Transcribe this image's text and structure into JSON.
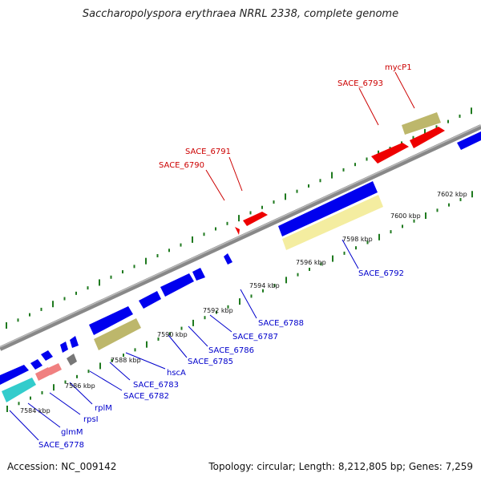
{
  "title": "Saccharopolyspora erythraea NRRL 2338, complete genome",
  "footer": {
    "accession": "Accession: NC_009142",
    "summary": "Topology: circular; Length: 8,212,805 bp; Genes: 7,259"
  },
  "colors": {
    "forward_gene": "#ee0000",
    "reverse_gene": "#0000ee",
    "backbone": "#888888",
    "ticks": "#1f7a1f",
    "label_fwd": "#cc0000",
    "label_rev": "#0000cc",
    "khaki": "#bdb76b",
    "pale_yellow": "#f4eda0",
    "cyan": "#33cccc",
    "pink": "#f08080",
    "gray": "#777777"
  },
  "kbp_labels": [
    "7584 kbp",
    "7586 kbp",
    "7588 kbp",
    "7590 kbp",
    "7592 kbp",
    "7594 kbp",
    "7596 kbp",
    "7598 kbp",
    "7600 kbp",
    "7602 kbp"
  ],
  "gene_labels_reverse": [
    "SACE_6778",
    "glmM",
    "rpsI",
    "rplM",
    "SACE_6782",
    "SACE_6783",
    "hscA",
    "SACE_6785",
    "SACE_6786",
    "SACE_6787",
    "SACE_6788",
    "SACE_6792"
  ],
  "gene_labels_forward": [
    "SACE_6790",
    "SACE_6791",
    "SACE_6793",
    "mycP1"
  ]
}
